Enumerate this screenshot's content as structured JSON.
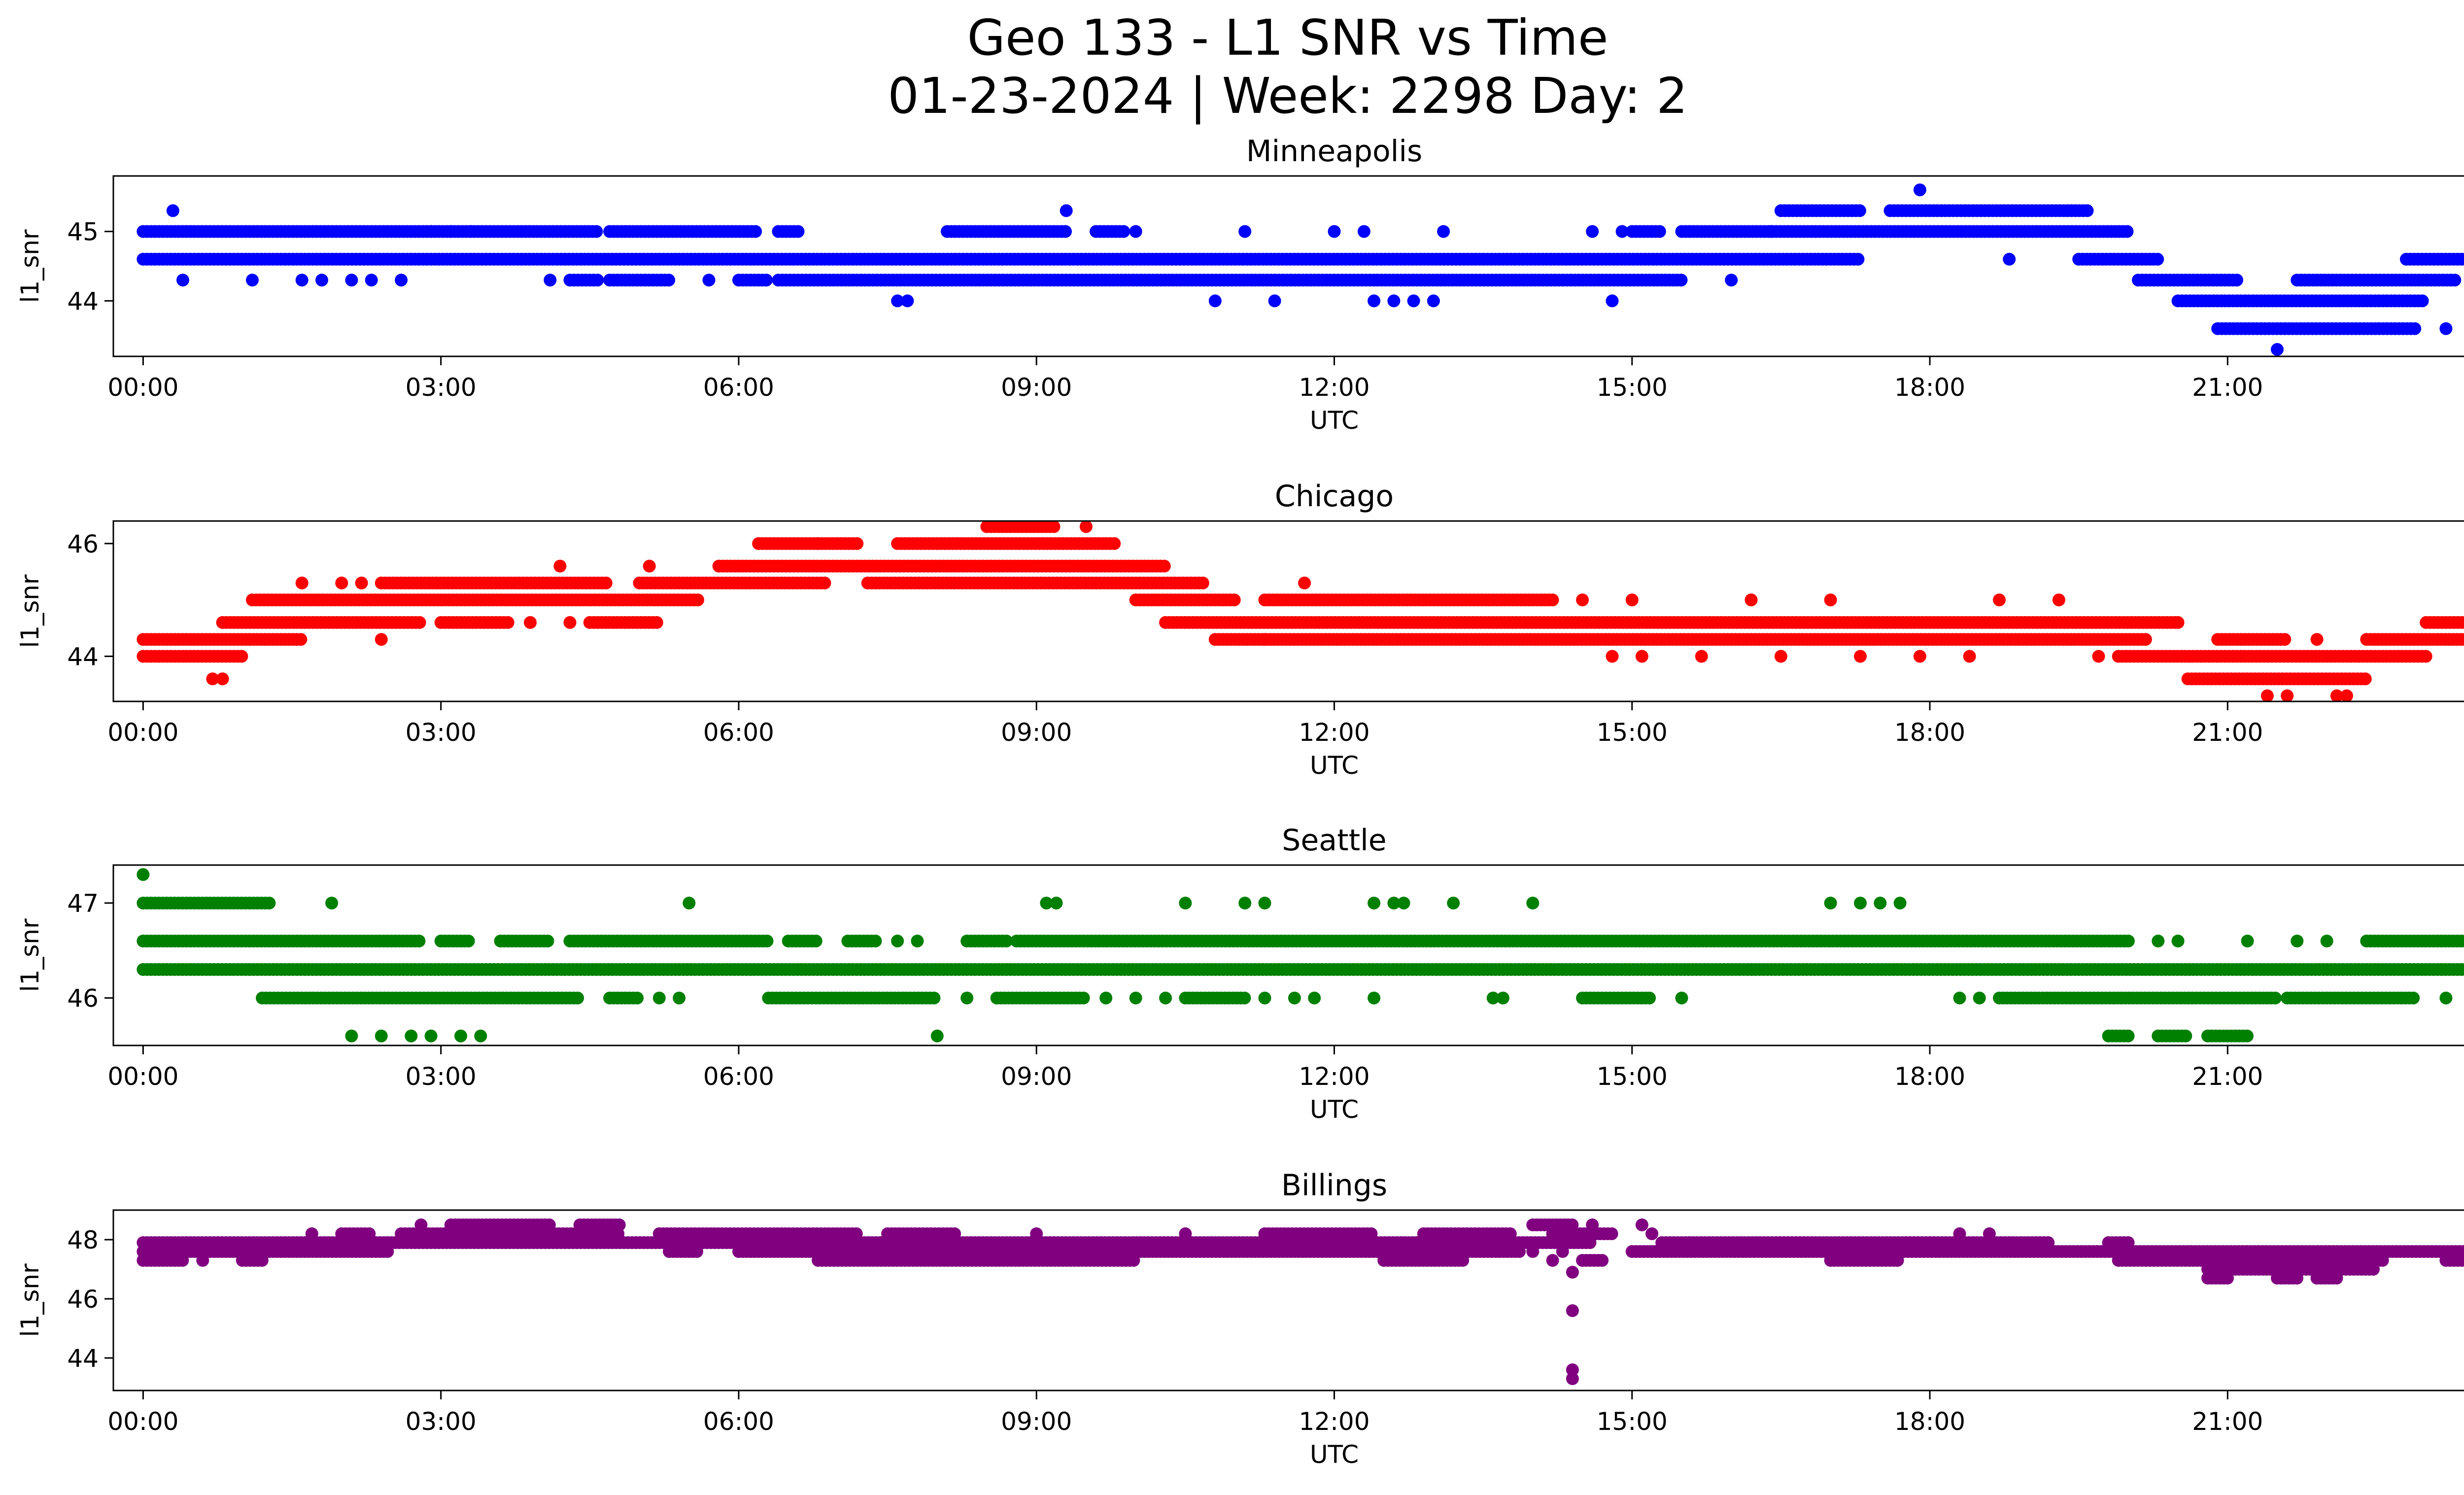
{
  "title_line1": "Geo 133 - L1 SNR vs Time",
  "title_line2": "01-23-2024 | Week: 2298 Day: 2",
  "chart_data": [
    {
      "type": "scatter",
      "title": "Minneapolis",
      "xlabel": "UTC",
      "ylabel": "l1_snr",
      "color": "#0000ff",
      "x_ticks": [
        "00:00",
        "03:00",
        "06:00",
        "09:00",
        "12:00",
        "15:00",
        "18:00",
        "21:00",
        "00:00"
      ],
      "y_ticks": [
        44,
        45
      ],
      "xlim": [
        -0.3,
        24.3
      ],
      "ylim": [
        43.2,
        45.8
      ],
      "levels": [
        {
          "y": 45.0,
          "ranges": [
            [
              0.0,
              4.6
            ],
            [
              4.7,
              6.2
            ],
            [
              6.4,
              6.6
            ],
            [
              8.1,
              9.3
            ],
            [
              9.6,
              9.9
            ],
            [
              15.0,
              15.3
            ],
            [
              15.5,
              20.0
            ]
          ],
          "points": [
            2.9,
            3.1,
            3.3,
            14.6,
            16.4,
            10.0,
            11.1,
            12.0,
            12.3,
            13.1,
            14.9
          ]
        },
        {
          "y": 44.6,
          "ranges": [
            [
              0.0,
              17.3
            ],
            [
              19.5,
              20.3
            ],
            [
              22.8,
              24.0
            ]
          ],
          "points": [
            18.8
          ]
        },
        {
          "y": 44.3,
          "ranges": [
            [
              4.3,
              4.6
            ],
            [
              4.7,
              5.3
            ],
            [
              6.0,
              6.3
            ],
            [
              6.4,
              15.5
            ],
            [
              20.1,
              21.1
            ],
            [
              21.7,
              23.3
            ]
          ],
          "points": [
            0.4,
            1.1,
            1.6,
            1.8,
            2.1,
            2.3,
            2.6,
            4.1,
            5.7,
            16.0
          ]
        },
        {
          "y": 44.0,
          "ranges": [
            [
              20.5,
              23.0
            ]
          ],
          "points": [
            7.6,
            7.7,
            10.8,
            11.4,
            12.4,
            12.6,
            12.8,
            13.0,
            14.8,
            23.6
          ]
        },
        {
          "y": 43.6,
          "ranges": [
            [
              20.9,
              22.9
            ]
          ],
          "points": [
            23.2
          ]
        },
        {
          "y": 45.3,
          "ranges": [
            [
              16.5,
              17.3
            ],
            [
              17.6,
              19.6
            ]
          ],
          "points": [
            0.3,
            9.3
          ]
        },
        {
          "y": 45.6,
          "ranges": [],
          "points": [
            17.9
          ]
        },
        {
          "y": 43.3,
          "ranges": [],
          "points": [
            21.5
          ]
        }
      ]
    },
    {
      "type": "scatter",
      "title": "Chicago",
      "xlabel": "UTC",
      "ylabel": "l1_snr",
      "color": "#ff0000",
      "x_ticks": [
        "00:00",
        "03:00",
        "06:00",
        "09:00",
        "12:00",
        "15:00",
        "18:00",
        "21:00",
        "00:00"
      ],
      "y_ticks": [
        44,
        46
      ],
      "xlim": [
        -0.3,
        24.3
      ],
      "ylim": [
        43.2,
        46.4
      ],
      "levels": [
        {
          "y": 44.0,
          "ranges": [
            [
              0.0,
              1.0
            ],
            [
              19.9,
              23.0
            ]
          ],
          "points": [
            14.8,
            15.1,
            15.7,
            16.5,
            17.3,
            17.9,
            18.4,
            19.7
          ]
        },
        {
          "y": 44.3,
          "ranges": [
            [
              0.0,
              1.6
            ],
            [
              10.8,
              20.2
            ],
            [
              20.9,
              21.6
            ],
            [
              22.4,
              24.0
            ]
          ],
          "points": [
            2.4,
            11.3,
            21.9
          ]
        },
        {
          "y": 44.6,
          "ranges": [
            [
              0.8,
              2.8
            ],
            [
              10.3,
              20.5
            ],
            [
              23.0,
              24.0
            ]
          ],
          "points": [
            20.5
          ]
        },
        {
          "y": 44.6,
          "ranges": [
            [
              3.0,
              3.7
            ],
            [
              4.5,
              5.2
            ]
          ],
          "points": [
            3.9,
            4.3
          ]
        },
        {
          "y": 45.0,
          "ranges": [
            [
              1.1,
              5.6
            ],
            [
              10.0,
              11.0
            ],
            [
              11.3,
              14.2
            ]
          ],
          "points": [
            14.5,
            15.0,
            16.2,
            17.0,
            18.7,
            19.3,
            23.5
          ]
        },
        {
          "y": 45.3,
          "ranges": [
            [
              2.4,
              4.7
            ],
            [
              5.0,
              6.9
            ],
            [
              7.3,
              10.7
            ]
          ],
          "points": [
            1.6,
            2.0,
            2.2,
            11.7
          ]
        },
        {
          "y": 45.6,
          "ranges": [
            [
              5.8,
              10.3
            ]
          ],
          "points": [
            4.2,
            5.1
          ]
        },
        {
          "y": 46.0,
          "ranges": [
            [
              6.2,
              7.2
            ],
            [
              7.6,
              9.8
            ]
          ],
          "points": [
            6.8
          ]
        },
        {
          "y": 46.3,
          "ranges": [
            [
              8.5,
              9.2
            ]
          ],
          "points": [
            9.5
          ]
        },
        {
          "y": 43.6,
          "ranges": [
            [
              20.6,
              22.4
            ]
          ],
          "points": [
            0.7,
            0.8
          ]
        },
        {
          "y": 43.3,
          "ranges": [],
          "points": [
            21.4,
            21.6,
            22.1,
            22.2
          ]
        }
      ]
    },
    {
      "type": "scatter",
      "title": "Seattle",
      "xlabel": "UTC",
      "ylabel": "l1_snr",
      "color": "#008000",
      "x_ticks": [
        "00:00",
        "03:00",
        "06:00",
        "09:00",
        "12:00",
        "15:00",
        "18:00",
        "21:00",
        "00:00"
      ],
      "y_ticks": [
        46,
        47
      ],
      "xlim": [
        -0.3,
        24.3
      ],
      "ylim": [
        45.5,
        47.4
      ],
      "levels": [
        {
          "y": 47.0,
          "ranges": [
            [
              0.0,
              1.3
            ]
          ],
          "points": [
            1.9,
            5.5,
            9.1,
            9.2,
            10.5,
            11.1,
            11.3,
            12.4,
            12.6,
            12.7,
            13.2,
            14.0,
            17.0,
            17.3,
            17.5,
            17.7
          ]
        },
        {
          "y": 46.6,
          "ranges": [
            [
              0.0,
              2.8
            ],
            [
              3.0,
              3.3
            ],
            [
              3.6,
              4.1
            ],
            [
              4.3,
              6.3
            ],
            [
              6.5,
              6.8
            ],
            [
              7.1,
              7.4
            ],
            [
              8.3,
              8.7
            ],
            [
              8.8,
              20.0
            ],
            [
              22.4,
              24.0
            ]
          ],
          "points": [
            7.6,
            7.8,
            20.3,
            20.5,
            21.2,
            21.7,
            22.0
          ]
        },
        {
          "y": 46.3,
          "ranges": [
            [
              0.0,
              24.0
            ]
          ],
          "points": []
        },
        {
          "y": 46.0,
          "ranges": [
            [
              1.2,
              4.4
            ],
            [
              4.7,
              5.0
            ],
            [
              6.3,
              8.0
            ],
            [
              8.6,
              9.5
            ],
            [
              10.5,
              11.1
            ],
            [
              14.5,
              15.2
            ],
            [
              18.7,
              21.5
            ],
            [
              21.6,
              22.9
            ]
          ],
          "points": [
            5.2,
            5.4,
            8.3,
            9.7,
            10.0,
            10.3,
            11.3,
            11.6,
            11.8,
            12.4,
            13.6,
            13.7,
            15.5,
            18.3,
            18.5,
            23.2,
            23.5
          ]
        },
        {
          "y": 45.6,
          "ranges": [
            [
              19.8,
              20.0
            ],
            [
              20.3,
              20.6
            ],
            [
              20.8,
              21.2
            ]
          ],
          "points": [
            2.1,
            2.4,
            2.7,
            2.9,
            3.2,
            3.4,
            8.0
          ]
        },
        {
          "y": 47.3,
          "ranges": [],
          "points": [
            0.0
          ]
        }
      ]
    },
    {
      "type": "scatter",
      "title": "Billings",
      "xlabel": "UTC",
      "ylabel": "l1_snr",
      "color": "#800080",
      "x_ticks": [
        "00:00",
        "03:00",
        "06:00",
        "09:00",
        "12:00",
        "15:00",
        "18:00",
        "21:00",
        "00:00"
      ],
      "y_ticks": [
        44,
        46,
        48
      ],
      "xlim": [
        -0.3,
        24.3
      ],
      "ylim": [
        42.9,
        49.0
      ],
      "levels": [
        {
          "y": 47.3,
          "ranges": [
            [
              0.0,
              0.4
            ],
            [
              1.0,
              1.2
            ],
            [
              6.8,
              7.0
            ],
            [
              7.0,
              10.0
            ],
            [
              12.5,
              13.3
            ],
            [
              14.5,
              14.7
            ],
            [
              17.0,
              17.7
            ],
            [
              19.9,
              22.6
            ],
            [
              23.2,
              23.9
            ]
          ],
          "points": [
            0.6,
            14.2
          ]
        },
        {
          "y": 47.6,
          "ranges": [
            [
              0.0,
              2.5
            ],
            [
              5.3,
              5.6
            ],
            [
              6.0,
              13.9
            ],
            [
              15.0,
              20.0
            ],
            [
              20.0,
              24.0
            ]
          ],
          "points": [
            14.0,
            14.3
          ]
        },
        {
          "y": 47.9,
          "ranges": [
            [
              0.0,
              14.6
            ],
            [
              15.3,
              19.2
            ],
            [
              19.8,
              20.0
            ]
          ],
          "points": [
            23.6,
            23.8
          ]
        },
        {
          "y": 48.2,
          "ranges": [
            [
              2.0,
              2.3
            ],
            [
              2.6,
              4.8
            ],
            [
              5.2,
              7.2
            ],
            [
              7.5,
              8.2
            ],
            [
              11.3,
              12.4
            ],
            [
              12.9,
              13.8
            ],
            [
              14.2,
              14.8
            ]
          ],
          "points": [
            1.7,
            9.0,
            10.5,
            15.2,
            18.3,
            18.6
          ]
        },
        {
          "y": 48.5,
          "ranges": [
            [
              3.1,
              4.1
            ],
            [
              4.4,
              4.8
            ],
            [
              14.0,
              14.4
            ]
          ],
          "points": [
            2.8,
            14.6,
            15.1
          ]
        },
        {
          "y": 47.0,
          "ranges": [
            [
              20.8,
              22.5
            ]
          ],
          "points": []
        },
        {
          "y": 46.7,
          "ranges": [
            [
              20.8,
              21.0
            ],
            [
              21.5,
              21.7
            ],
            [
              21.9,
              22.1
            ]
          ],
          "points": []
        },
        {
          "y": 46.9,
          "ranges": [],
          "points": [
            14.4
          ]
        },
        {
          "y": 45.6,
          "ranges": [],
          "points": [
            14.4
          ]
        },
        {
          "y": 43.6,
          "ranges": [],
          "points": [
            14.4
          ]
        },
        {
          "y": 43.3,
          "ranges": [],
          "points": [
            14.4
          ]
        }
      ]
    }
  ]
}
